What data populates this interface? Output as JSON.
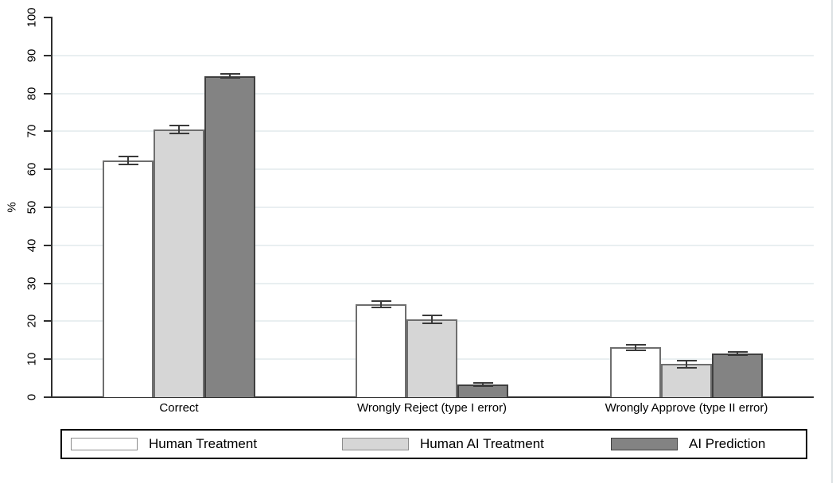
{
  "chart_data": {
    "type": "bar",
    "title": "",
    "xlabel": "",
    "ylabel": "%",
    "ylim": [
      0,
      100
    ],
    "ytick_interval": 10,
    "grid": "horizontal-light",
    "legend_position": "bottom",
    "error_bars": true,
    "categories": [
      "Correct",
      "Wrongly Reject (type I error)",
      "Wrongly Approve (type II error)"
    ],
    "series": [
      {
        "name": "Human Treatment",
        "fill": "#ffffff",
        "border": "#6e6e6e",
        "values": [
          62.3,
          24.5,
          13.1
        ],
        "ci": [
          1.0,
          0.9,
          0.8
        ]
      },
      {
        "name": "Human AI Treatment",
        "fill": "#d6d6d6",
        "border": "#6e6e6e",
        "values": [
          70.5,
          20.5,
          8.7
        ],
        "ci": [
          1.1,
          1.1,
          0.9
        ]
      },
      {
        "name": "AI Prediction",
        "fill": "#838383",
        "border": "#3f3f3f",
        "values": [
          84.6,
          3.4,
          11.5
        ],
        "ci": [
          0.5,
          0.4,
          0.5
        ]
      }
    ],
    "colors": {
      "gridline": "#e9eff1",
      "axis": "#2f2f2f",
      "error_bar": "#3a3a3a",
      "text": "#000000",
      "background": "#ffffff"
    }
  }
}
